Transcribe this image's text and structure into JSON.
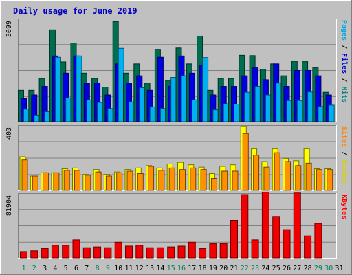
{
  "chart_data": {
    "type": "bar",
    "title": "Daily usage for June 2019",
    "days": [
      "1",
      "2",
      "3",
      "4",
      "5",
      "6",
      "7",
      "8",
      "9",
      "10",
      "11",
      "12",
      "13",
      "14",
      "15",
      "16",
      "17",
      "18",
      "19",
      "20",
      "21",
      "22",
      "23",
      "24",
      "25",
      "26",
      "27",
      "28",
      "29",
      "30",
      "31"
    ],
    "weekend_days": [
      1,
      2,
      8,
      9,
      15,
      16,
      22,
      23,
      29,
      30
    ],
    "panels": [
      {
        "ylabel_max": "3099",
        "ymax": 3099,
        "legend": [
          {
            "text": "Hits",
            "color": "#008080"
          },
          {
            "text": "Files",
            "color": "#0000d0"
          },
          {
            "text": "Pages",
            "color": "#00a8e0"
          }
        ],
        "series": [
          {
            "name": "Hits",
            "color": "#006c50",
            "values": [
              950,
              950,
              1310,
              2780,
              1810,
              2380,
              1470,
              1310,
              1050,
              3030,
              1470,
              1750,
              1170,
              2190,
              1250,
              2230,
              1750,
              2590,
              950,
              1310,
              1310,
              2010,
              2000,
              1590,
              1750,
              1390,
              1830,
              1830,
              1630,
              890
            ]
          },
          {
            "name": "Files",
            "color": "#0000e0",
            "values": [
              700,
              810,
              1070,
              1990,
              1470,
              1990,
              1170,
              1170,
              810,
              1750,
              1170,
              1390,
              950,
              1950,
              1070,
              1990,
              1470,
              1710,
              810,
              1070,
              1070,
              1390,
              1630,
              1270,
              1750,
              1070,
              1550,
              1550,
              1390,
              810
            ]
          },
          {
            "name": "Pages",
            "color": "#00b0f0",
            "values": [
              380,
              180,
              300,
              1950,
              720,
              1990,
              660,
              580,
              400,
              2220,
              600,
              1030,
              450,
              400,
              1340,
              1390,
              660,
              1940,
              360,
              540,
              530,
              890,
              1070,
              810,
              1170,
              640,
              640,
              900,
              460,
              500
            ]
          }
        ]
      },
      {
        "ylabel_max": "403",
        "ymax": 403,
        "legend": [
          {
            "text": "Visits",
            "color": "#d8d000"
          },
          {
            "text": "Sites",
            "color": "#ff8000"
          }
        ],
        "series": [
          {
            "name": "Visits",
            "color": "#ffff00",
            "values": [
              210,
              90,
              110,
              110,
              135,
              140,
              100,
              130,
              100,
              115,
              130,
              140,
              155,
              140,
              165,
              175,
              160,
              145,
              105,
              150,
              160,
              398,
              260,
              180,
              260,
              200,
              185,
              260,
              135,
              135
            ]
          },
          {
            "name": "Sites",
            "color": "#ff9000",
            "values": [
              190,
              90,
              110,
              110,
              125,
              125,
              95,
              115,
              90,
              110,
              120,
              105,
              150,
              125,
              140,
              130,
              140,
              130,
              75,
              120,
              120,
              355,
              220,
              145,
              235,
              180,
              155,
              170,
              130,
              130
            ]
          }
        ]
      },
      {
        "ylabel_max": "81904",
        "ymax": 81904,
        "legend": [
          {
            "text": "KBytes",
            "color": "#ff0000"
          }
        ],
        "series": [
          {
            "name": "KBytes",
            "color": "#f00000",
            "values": [
              8000,
              9000,
              12000,
              16000,
              16000,
              23000,
              13000,
              14000,
              13000,
              20000,
              15000,
              16000,
              13000,
              13000,
              14000,
              15000,
              20000,
              12000,
              18000,
              18000,
              48000,
              81000,
              23000,
              84000,
              53000,
              36000,
              83000,
              28000,
              44000,
              0
            ]
          }
        ]
      }
    ]
  }
}
